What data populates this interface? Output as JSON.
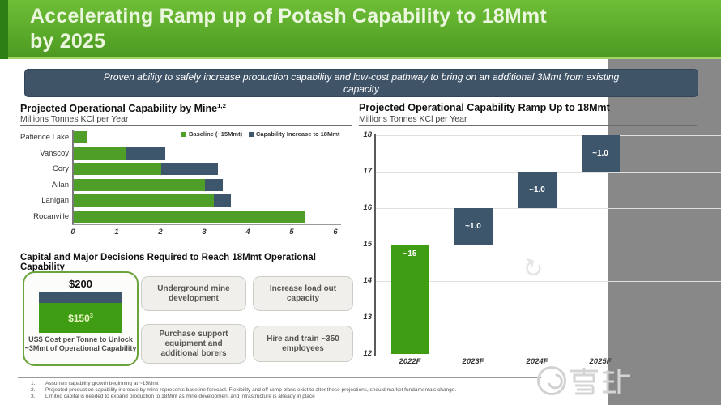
{
  "slide": {
    "title": "Accelerating Ramp up of Potash Capability to 18Mmt by 2025",
    "banner": "Proven ability to safely increase production capability and low-cost pathway to bring on an additional 3Mmt from existing capacity"
  },
  "chart_data": [
    {
      "type": "bar",
      "orientation": "horizontal",
      "title": "Projected Operational Capability by Mine",
      "title_superscript": "1,2",
      "subtitle": "Millions Tonnes KCl per Year",
      "categories": [
        "Patience Lake",
        "Vanscoy",
        "Cory",
        "Allan",
        "Lanigan",
        "Rocanville"
      ],
      "series": [
        {
          "name": "Baseline (~15Mmt)",
          "color": "#4f9e27",
          "values": [
            0.3,
            1.2,
            2.0,
            3.0,
            3.2,
            5.3
          ]
        },
        {
          "name": "Capability Increase to 18Mmt",
          "color": "#3d566b",
          "values": [
            0,
            0.9,
            1.3,
            0.4,
            0.4,
            0
          ]
        }
      ],
      "xlim": [
        0,
        6
      ],
      "xticks": [
        0,
        1,
        2,
        3,
        4,
        5,
        6
      ],
      "legend_position": "top-right",
      "grid": false
    },
    {
      "type": "bar",
      "subtype": "waterfall",
      "title": "Projected Operational Capability Ramp Up to 18Mmt",
      "subtitle": "Millions Tonnes KCl per Year",
      "categories": [
        "2022F",
        "2023F",
        "2024F",
        "2025F"
      ],
      "segments": [
        {
          "category": "2022F",
          "from": 12,
          "to": 15,
          "label": "~15",
          "color": "#3f9d14"
        },
        {
          "category": "2023F",
          "from": 15,
          "to": 16,
          "label": "~1.0",
          "color": "#3d566b"
        },
        {
          "category": "2024F",
          "from": 16,
          "to": 17,
          "label": "~1.0",
          "color": "#3d566b"
        },
        {
          "category": "2025F",
          "from": 17,
          "to": 18,
          "label": "~1.0",
          "color": "#3d566b"
        }
      ],
      "ylim": [
        12,
        18
      ],
      "yticks": [
        12,
        13,
        14,
        15,
        16,
        17,
        18
      ],
      "grid": true
    }
  ],
  "capital_section": {
    "heading": "Capital and Major Decisions Required to Reach 18Mmt Operational Capability",
    "cost_box": {
      "top_value": "$200",
      "bar_value": "$150",
      "bar_value_superscript": "3",
      "bar_top_color": "#3d566b",
      "bar_bottom_color": "#3f9d14",
      "caption_line1": "US$ Cost per Tonne to Unlock",
      "caption_line2": "~3Mmt of Operational Capability"
    },
    "decisions": [
      "Underground mine development",
      "Increase load out capacity",
      "Purchase support equipment and additional borers",
      "Hire and train ~350 employees"
    ]
  },
  "footnotes": [
    {
      "num": "1.",
      "text": "Assumes capability growth beginning at ~15Mmt"
    },
    {
      "num": "2.",
      "text": "Projected production capability increase by mine represents baseline forecast. Flexibility and off-ramp plans exist to alter these projections, should market fundamentals change."
    },
    {
      "num": "3.",
      "text": "Limited capital is needed to expand production to 18Mmt as mine development and infrastructure is already in place"
    }
  ],
  "watermark": {
    "text": "雪球"
  },
  "colors": {
    "header_green_top": "#6fbe37",
    "header_green_bottom": "#4c9a21",
    "header_strip_green": "#2c7e15",
    "banner_navy": "#405468",
    "bar_green": "#4f9e27",
    "bar_navy": "#3d566b",
    "waterfall_green": "#3f9d14"
  }
}
